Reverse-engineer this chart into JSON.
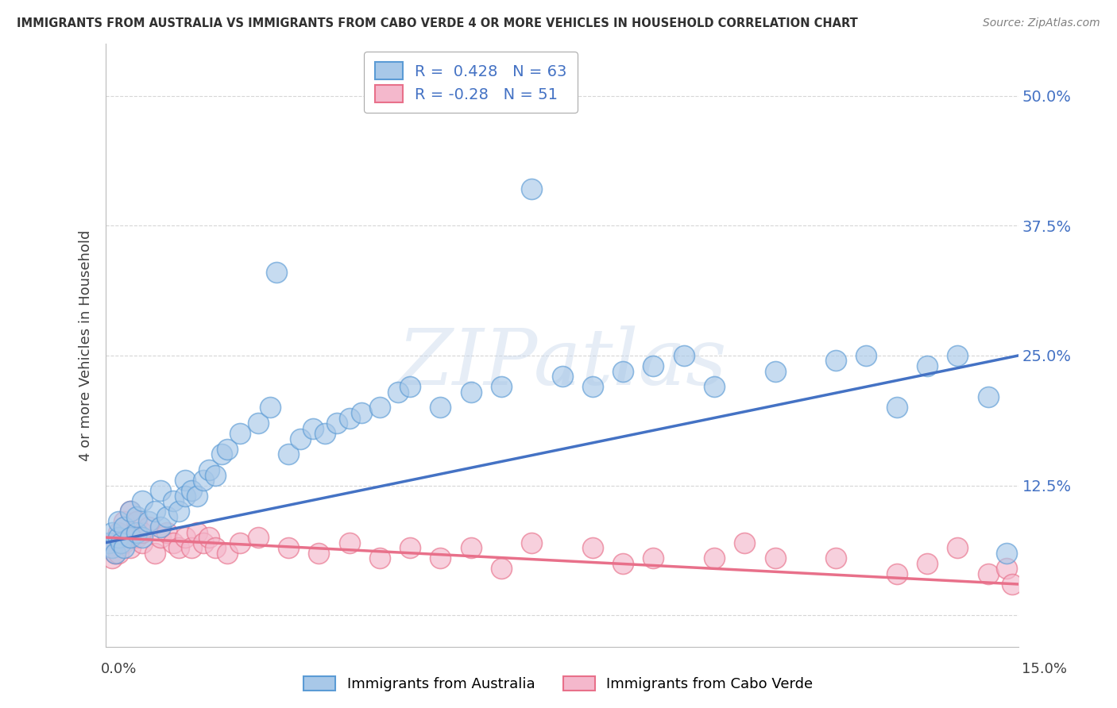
{
  "title": "IMMIGRANTS FROM AUSTRALIA VS IMMIGRANTS FROM CABO VERDE 4 OR MORE VEHICLES IN HOUSEHOLD CORRELATION CHART",
  "source": "Source: ZipAtlas.com",
  "ylabel": "4 or more Vehicles in Household",
  "R_australia": 0.428,
  "N_australia": 63,
  "R_caboverde": -0.28,
  "N_caboverde": 51,
  "color_australia_fill": "#A8C8E8",
  "color_australia_edge": "#5B9BD5",
  "color_caboverde_fill": "#F4B8CC",
  "color_caboverde_edge": "#E8708A",
  "color_australia_line": "#4472C4",
  "color_caboverde_line": "#E8708A",
  "color_grid": "#CCCCCC",
  "color_title": "#303030",
  "color_source": "#808080",
  "legend_australia": "Immigrants from Australia",
  "legend_caboverde": "Immigrants from Cabo Verde",
  "xlim": [
    0.0,
    0.15
  ],
  "ylim": [
    -0.03,
    0.55
  ],
  "yticks": [
    0.0,
    0.125,
    0.25,
    0.375,
    0.5
  ],
  "ytick_labels": [
    "",
    "12.5%",
    "25.0%",
    "37.5%",
    "50.0%"
  ],
  "aus_line_y0": 0.07,
  "aus_line_y1": 0.25,
  "cv_line_y0": 0.075,
  "cv_line_y1": 0.03,
  "watermark_text": "ZIPatlas",
  "aus_x": [
    0.0005,
    0.001,
    0.001,
    0.0015,
    0.002,
    0.002,
    0.0025,
    0.003,
    0.003,
    0.004,
    0.004,
    0.005,
    0.005,
    0.006,
    0.006,
    0.007,
    0.008,
    0.009,
    0.009,
    0.01,
    0.011,
    0.012,
    0.013,
    0.013,
    0.014,
    0.015,
    0.016,
    0.017,
    0.018,
    0.019,
    0.02,
    0.022,
    0.025,
    0.027,
    0.028,
    0.03,
    0.032,
    0.034,
    0.036,
    0.038,
    0.04,
    0.042,
    0.045,
    0.048,
    0.05,
    0.055,
    0.06,
    0.065,
    0.07,
    0.075,
    0.08,
    0.085,
    0.09,
    0.095,
    0.1,
    0.11,
    0.12,
    0.125,
    0.13,
    0.135,
    0.14,
    0.145,
    0.148
  ],
  "aus_y": [
    0.07,
    0.065,
    0.08,
    0.06,
    0.075,
    0.09,
    0.07,
    0.065,
    0.085,
    0.075,
    0.1,
    0.08,
    0.095,
    0.075,
    0.11,
    0.09,
    0.1,
    0.085,
    0.12,
    0.095,
    0.11,
    0.1,
    0.13,
    0.115,
    0.12,
    0.115,
    0.13,
    0.14,
    0.135,
    0.155,
    0.16,
    0.175,
    0.185,
    0.2,
    0.33,
    0.155,
    0.17,
    0.18,
    0.175,
    0.185,
    0.19,
    0.195,
    0.2,
    0.215,
    0.22,
    0.2,
    0.215,
    0.22,
    0.41,
    0.23,
    0.22,
    0.235,
    0.24,
    0.25,
    0.22,
    0.235,
    0.245,
    0.25,
    0.2,
    0.24,
    0.25,
    0.21,
    0.06
  ],
  "cv_x": [
    0.0005,
    0.001,
    0.001,
    0.0015,
    0.002,
    0.002,
    0.003,
    0.003,
    0.004,
    0.004,
    0.005,
    0.005,
    0.006,
    0.006,
    0.007,
    0.008,
    0.009,
    0.01,
    0.011,
    0.012,
    0.013,
    0.014,
    0.015,
    0.016,
    0.017,
    0.018,
    0.02,
    0.022,
    0.025,
    0.03,
    0.035,
    0.04,
    0.045,
    0.05,
    0.055,
    0.06,
    0.065,
    0.07,
    0.08,
    0.085,
    0.09,
    0.1,
    0.105,
    0.11,
    0.12,
    0.13,
    0.135,
    0.14,
    0.145,
    0.148,
    0.149
  ],
  "cv_y": [
    0.065,
    0.07,
    0.055,
    0.06,
    0.08,
    0.06,
    0.07,
    0.09,
    0.065,
    0.1,
    0.075,
    0.09,
    0.07,
    0.08,
    0.085,
    0.06,
    0.075,
    0.08,
    0.07,
    0.065,
    0.075,
    0.065,
    0.08,
    0.07,
    0.075,
    0.065,
    0.06,
    0.07,
    0.075,
    0.065,
    0.06,
    0.07,
    0.055,
    0.065,
    0.055,
    0.065,
    0.045,
    0.07,
    0.065,
    0.05,
    0.055,
    0.055,
    0.07,
    0.055,
    0.055,
    0.04,
    0.05,
    0.065,
    0.04,
    0.045,
    0.03
  ]
}
